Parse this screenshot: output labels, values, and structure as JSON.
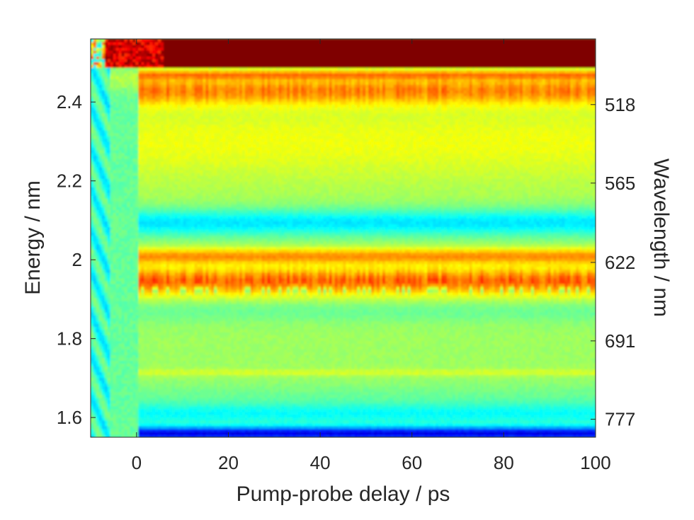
{
  "chart_data": {
    "type": "heatmap",
    "title": "",
    "xlabel": "Pump-probe delay / ps",
    "ylabel": "Energy / nm",
    "y2label": "Wavelength / nm",
    "xlim": [
      -10,
      100
    ],
    "ylim": [
      1.55,
      2.56
    ],
    "x_ticks": [
      0,
      20,
      40,
      60,
      80,
      100
    ],
    "y_ticks": [
      1.6,
      1.8,
      2,
      2.2,
      2.4
    ],
    "y_tick_labels": [
      "1.6",
      "1.8",
      "2",
      "2.2",
      "2.4"
    ],
    "y2_ticks": [
      777,
      691,
      622,
      565,
      518
    ],
    "colormap": "jet",
    "colormap_colors": [
      "#00007f",
      "#0000ff",
      "#007fff",
      "#00ffff",
      "#7fff7f",
      "#ffff00",
      "#ff7f00",
      "#ff0000",
      "#7f0000"
    ],
    "grid": false,
    "bands": [
      {
        "energy_range": [
          2.485,
          2.56
        ],
        "value": 1.0,
        "note": "saturated"
      },
      {
        "energy_range": [
          2.45,
          2.485
        ],
        "value": 0.8
      },
      {
        "energy_range": [
          2.38,
          2.45
        ],
        "value": 0.72
      },
      {
        "energy_range": [
          2.2,
          2.38
        ],
        "value": 0.6
      },
      {
        "energy_range": [
          2.07,
          2.12
        ],
        "value": 0.36
      },
      {
        "energy_range": [
          1.99,
          2.03
        ],
        "value": 0.72
      },
      {
        "energy_range": [
          1.9,
          1.99
        ],
        "value": 0.8
      },
      {
        "energy_range": [
          1.7,
          1.72
        ],
        "value": 0.6
      },
      {
        "energy_range": [
          1.55,
          1.58
        ],
        "value": 0.1
      }
    ],
    "features": {
      "onset_delay_ps": 0,
      "pre_zero_value": 0.42
    }
  }
}
